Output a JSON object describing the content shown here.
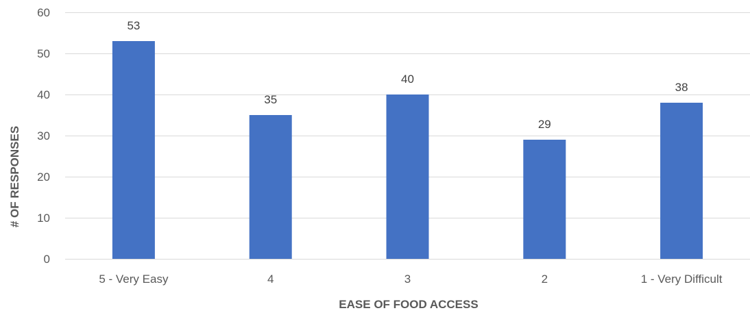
{
  "chart_data": {
    "type": "bar",
    "title": "",
    "xlabel": "EASE OF FOOD ACCESS",
    "ylabel": "# OF RESPONSES",
    "categories": [
      "5 - Very Easy",
      "4",
      "3",
      "2",
      "1 - Very Difficult"
    ],
    "values": [
      53,
      35,
      40,
      29,
      38
    ],
    "data_labels": [
      "53",
      "35",
      "40",
      "29",
      "38"
    ],
    "ylim": [
      0,
      60
    ],
    "yticks": [
      0,
      10,
      20,
      30,
      40,
      50,
      60
    ],
    "grid": true,
    "legend": "none",
    "bar_color": "#4472c4"
  }
}
